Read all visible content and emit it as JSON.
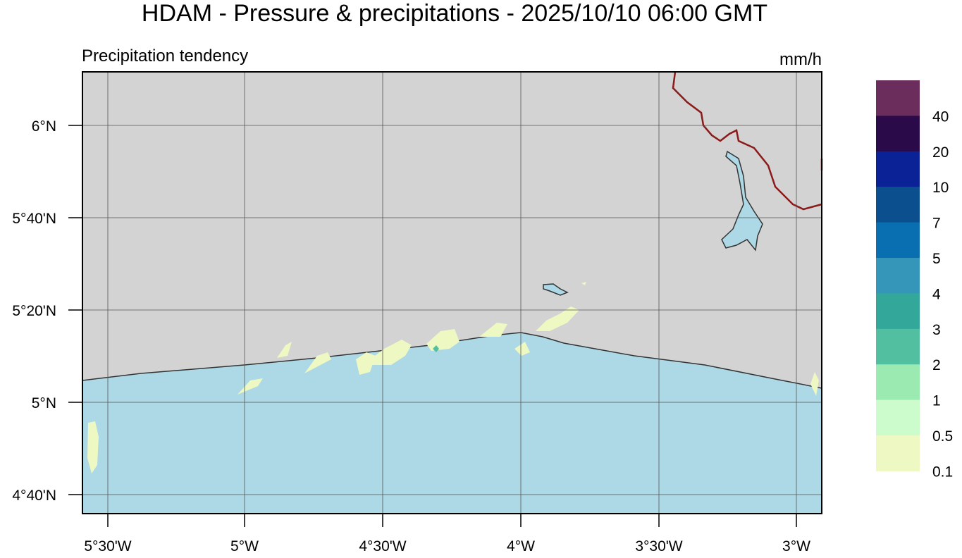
{
  "header": {
    "title": "HDAM - Pressure & precipitations  -  2025/10/10  06:00 GMT",
    "subtitle": "Precipitation tendency",
    "unit": "mm/h"
  },
  "map": {
    "lat_labels": [
      "6°N",
      "5°40'N",
      "5°20'N",
      "5°N",
      "4°40'N"
    ],
    "lon_labels": [
      "5°30'W",
      "5°W",
      "4°30'W",
      "4°W",
      "3°30'W",
      "3°W"
    ]
  },
  "legend": {
    "colors": [
      "#6b2d5c",
      "#2a0a48",
      "#0b2196",
      "#0b4f8f",
      "#0a6fb0",
      "#3696b9",
      "#33a89a",
      "#52bfa0",
      "#9aeab2",
      "#ccfccc",
      "#eef8c2"
    ],
    "labels": [
      "40",
      "20",
      "10",
      "7",
      "5",
      "4",
      "3",
      "2",
      "1",
      "0.5",
      "0.1"
    ]
  }
}
